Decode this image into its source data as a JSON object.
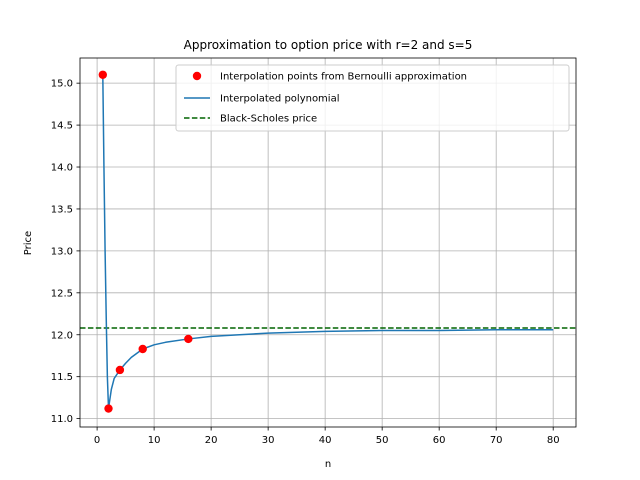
{
  "chart_data": {
    "type": "line",
    "title": "Approximation to option price with r=2 and s=5",
    "xlabel": "n",
    "ylabel": "Price",
    "xlim": [
      -3.0,
      84.0
    ],
    "ylim": [
      10.9,
      15.3
    ],
    "xticks": [
      0,
      10,
      20,
      30,
      40,
      50,
      60,
      70,
      80
    ],
    "yticks": [
      11.0,
      11.5,
      12.0,
      12.5,
      13.0,
      13.5,
      14.0,
      14.5,
      15.0
    ],
    "xtick_labels": [
      "0",
      "10",
      "20",
      "30",
      "40",
      "50",
      "60",
      "70",
      "80"
    ],
    "ytick_labels": [
      "11.0",
      "11.5",
      "12.0",
      "12.5",
      "13.0",
      "13.5",
      "14.0",
      "14.5",
      "15.0"
    ],
    "grid": true,
    "legend_placement": "top-right",
    "series": [
      {
        "name": "Interpolation points from Bernoulli approximation",
        "kind": "scatter",
        "color": "#ff0000",
        "x": [
          1,
          2,
          4,
          8,
          16
        ],
        "y": [
          15.1,
          11.12,
          11.58,
          11.83,
          11.95
        ]
      },
      {
        "name": "Interpolated polynomial",
        "kind": "line",
        "color": "#1f77b4",
        "x": [
          1,
          1.2,
          1.4,
          1.6,
          1.8,
          2,
          2.5,
          3,
          4,
          5,
          6,
          8,
          10,
          12,
          16,
          20,
          25,
          30,
          40,
          50,
          60,
          70,
          80
        ],
        "y": [
          15.1,
          14.0,
          13.0,
          12.2,
          11.5,
          11.12,
          11.35,
          11.48,
          11.58,
          11.66,
          11.73,
          11.83,
          11.88,
          11.91,
          11.95,
          11.98,
          12.0,
          12.02,
          12.04,
          12.05,
          12.05,
          12.06,
          12.06
        ]
      },
      {
        "name": "Black-Scholes price",
        "kind": "hline",
        "color": "#006400",
        "y": 12.08
      }
    ]
  }
}
